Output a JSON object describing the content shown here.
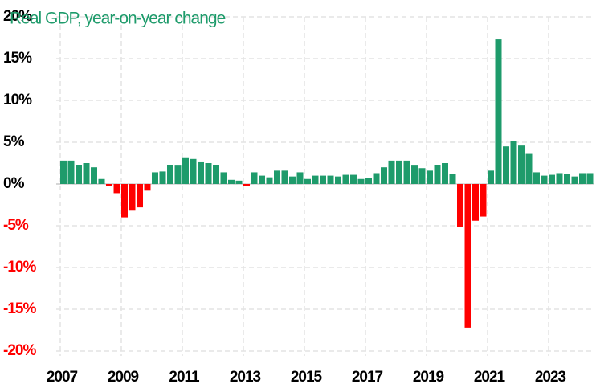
{
  "chart_data": {
    "type": "bar",
    "title": "Real GDP, year-on-year change",
    "categories": [
      "2007",
      null,
      null,
      null,
      null,
      null,
      null,
      null,
      "2009",
      null,
      null,
      null,
      null,
      null,
      null,
      null,
      "2011",
      null,
      null,
      null,
      null,
      null,
      null,
      null,
      "2013",
      null,
      null,
      null,
      null,
      null,
      null,
      null,
      "2015",
      null,
      null,
      null,
      null,
      null,
      null,
      null,
      "2017",
      null,
      null,
      null,
      null,
      null,
      null,
      null,
      "2019",
      null,
      null,
      null,
      null,
      null,
      null,
      null,
      "2021",
      null,
      null,
      null,
      null,
      null,
      null,
      null,
      "2023",
      null,
      null,
      null,
      null,
      null
    ],
    "values": [
      2.8,
      2.8,
      2.3,
      2.5,
      2.0,
      0.6,
      -0.2,
      -1.1,
      -4.0,
      -3.2,
      -2.8,
      -0.8,
      1.4,
      1.5,
      2.3,
      2.2,
      3.1,
      3.0,
      2.6,
      2.5,
      2.3,
      1.4,
      0.5,
      0.4,
      -0.2,
      1.4,
      1.0,
      0.8,
      1.6,
      1.6,
      0.9,
      1.4,
      0.6,
      1.0,
      1.0,
      1.0,
      0.9,
      1.1,
      1.1,
      0.6,
      0.7,
      1.3,
      2.0,
      2.8,
      2.8,
      2.8,
      2.2,
      1.9,
      1.6,
      2.3,
      2.5,
      1.2,
      -5.1,
      -17.2,
      -4.4,
      -3.9,
      1.6,
      17.3,
      4.5,
      5.1,
      4.6,
      3.6,
      1.4,
      1.0,
      1.1,
      1.3,
      1.2,
      0.9,
      1.3,
      1.3
    ],
    "positive_color": "#1e9b6b",
    "negative_color": "#ff0000",
    "ylim": [
      -20,
      20
    ],
    "yticks": [
      {
        "value": -20,
        "label": "-20%"
      },
      {
        "value": -15,
        "label": "-15%"
      },
      {
        "value": -10,
        "label": "-10%"
      },
      {
        "value": -5,
        "label": "-5%"
      },
      {
        "value": 0,
        "label": "0%"
      },
      {
        "value": 5,
        "label": "5%"
      },
      {
        "value": 10,
        "label": "10%"
      },
      {
        "value": 15,
        "label": "15%"
      },
      {
        "value": 20,
        "label": "20%"
      }
    ],
    "grid": true
  }
}
